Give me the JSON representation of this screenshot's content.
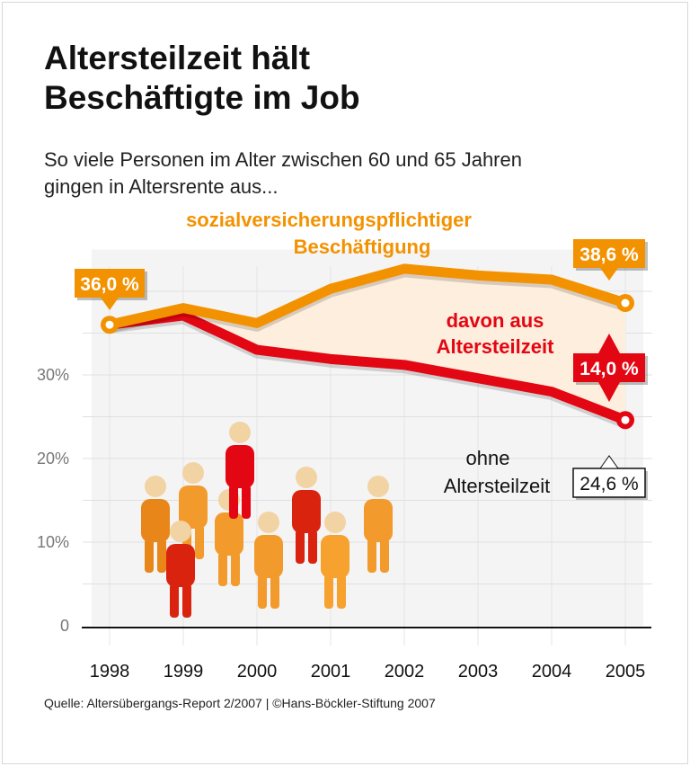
{
  "title_line1": "Altersteilzeit hält",
  "title_line2": "Beschäftigte im Job",
  "subtitle_line1": "So viele Personen im Alter zwischen 60 und 65 Jahren",
  "subtitle_line2": "gingen in Altersrente aus...",
  "source": "Quelle: Altersübergangs-Report 2/2007 | ©Hans-Böckler-Stiftung 2007",
  "colors": {
    "orange": "#f39200",
    "red": "#e30613",
    "fill": "#fdeedd"
  },
  "chart_data": {
    "type": "line",
    "x": [
      "1998",
      "1999",
      "2000",
      "2001",
      "2002",
      "2003",
      "2004",
      "2005"
    ],
    "ylim": [
      0,
      45
    ],
    "yticks": [
      "0",
      "10%",
      "20%",
      "30%"
    ],
    "grid": true,
    "series": [
      {
        "name_line1": "sozialversicherungspflichtiger",
        "name_line2": "Beschäftigung",
        "color": "#f39200",
        "values": [
          36.0,
          38.0,
          36.2,
          40.3,
          42.7,
          41.9,
          41.4,
          38.6
        ],
        "start_label": "36,0 %",
        "end_label": "38,6 %"
      },
      {
        "name_line1": "ohne",
        "name_line2": "Altersteilzeit",
        "color": "#e30613",
        "values": [
          36.0,
          37.1,
          33.0,
          31.9,
          31.2,
          29.6,
          28.0,
          24.6
        ],
        "end_label": "24,6 %"
      }
    ],
    "band": {
      "name_line1": "davon aus",
      "name_line2": "Altersteilzeit",
      "label": "14,0 %"
    }
  }
}
